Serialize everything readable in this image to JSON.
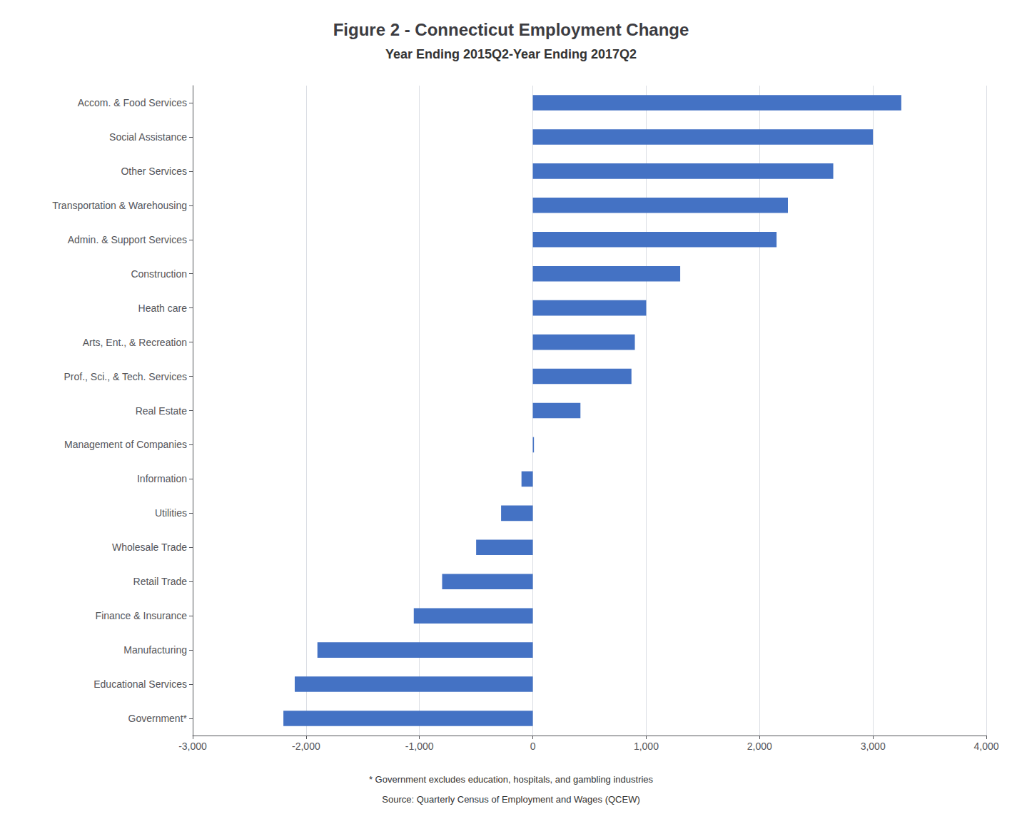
{
  "chart_data": {
    "type": "bar",
    "orientation": "horizontal",
    "title": "Figure 2 - Connecticut Employment Change",
    "subtitle": "Year Ending 2015Q2-Year Ending 2017Q2",
    "categories": [
      "Government*",
      "Educational Services",
      "Manufacturing",
      "Finance & Insurance",
      "Retail Trade",
      "Wholesale Trade",
      "Utilities",
      "Information",
      "Management of Companies",
      "Real Estate",
      "Prof., Sci., & Tech. Services",
      "Arts, Ent., & Recreation",
      "Heath care",
      "Construction",
      "Admin. & Support Services",
      "Transportation & Warehousing",
      "Other Services",
      "Social Assistance",
      "Accom. & Food Services"
    ],
    "values": [
      -2200,
      -2100,
      -1900,
      -1050,
      -800,
      -500,
      -280,
      -100,
      10,
      420,
      870,
      900,
      1000,
      1300,
      2150,
      2250,
      2650,
      3000,
      3250
    ],
    "color": "#4472C4",
    "xlim": [
      -3000,
      4000
    ],
    "xticks": [
      {
        "value": -3000,
        "label": "-3,000"
      },
      {
        "value": -2000,
        "label": "-2,000"
      },
      {
        "value": -1000,
        "label": "-1,000"
      },
      0,
      {
        "value": 1000,
        "label": "1,000"
      },
      {
        "value": 2000,
        "label": "2,000"
      },
      {
        "value": 3000,
        "label": "3,000"
      },
      {
        "value": 4000,
        "label": "4,000"
      }
    ],
    "grid": true,
    "annotations": [
      "* Government excludes education, hospitals, and gambling industries",
      "Source: Quarterly Census of Employment and Wages (QCEW)"
    ]
  }
}
